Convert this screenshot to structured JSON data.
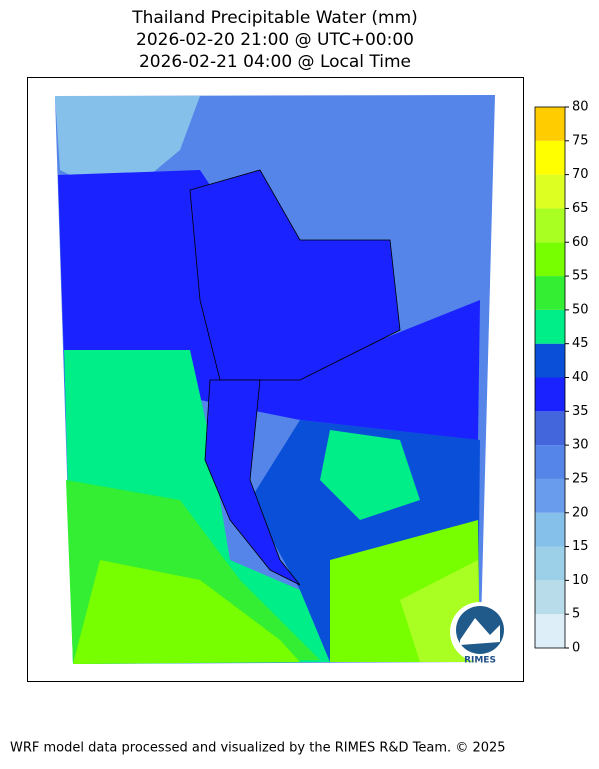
{
  "title": [
    "Thailand Precipitable Water (mm)",
    "2026-02-20 21:00 @ UTC+00:00",
    "2026-02-21 04:00 @ Local Time"
  ],
  "colorbar": {
    "lim": [
      0,
      80
    ],
    "ticks": [
      0,
      5,
      10,
      15,
      20,
      25,
      30,
      35,
      40,
      45,
      50,
      55,
      60,
      65,
      70,
      75,
      80
    ],
    "colors": [
      "#ddeef8",
      "#b8dcea",
      "#9ccfe8",
      "#85c0ea",
      "#6a9cee",
      "#5585e8",
      "#4466dd",
      "#1a22ff",
      "#0a4fd8",
      "#00ee88",
      "#33ee33",
      "#77ff00",
      "#aaff22",
      "#ddff22",
      "#ffff00",
      "#ffcc00"
    ]
  },
  "logo": "RIMES",
  "footer": "WRF model data processed and visualized by the RIMES R&D Team. © 2025"
}
